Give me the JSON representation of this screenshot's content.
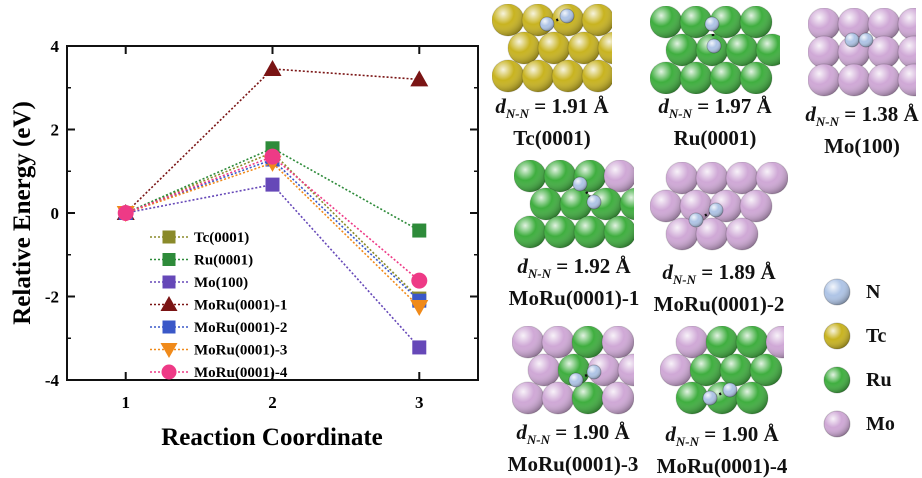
{
  "colors": {
    "N": "#aec4e6",
    "Tc": "#c8b320",
    "Ru": "#3fae3f",
    "Mo": "#cfa8d6"
  },
  "chart_data": {
    "type": "line",
    "xlabel": "Reaction Coordinate",
    "ylabel": "Relative Energy (eV)",
    "x": [
      1,
      2,
      3
    ],
    "xlim": [
      0.6,
      3.4
    ],
    "ylim": [
      -4,
      4
    ],
    "xticks": [
      "1",
      "2",
      "3"
    ],
    "yticks": [
      "-4",
      "-2",
      "0",
      "2",
      "4"
    ],
    "grid": false,
    "legend_position": "bottom-left",
    "series": [
      {
        "name": "Tc(0001)",
        "values": [
          0,
          1.45,
          -2.05
        ],
        "color": "#8a8a2a",
        "marker": "square"
      },
      {
        "name": "Ru(0001)",
        "values": [
          0,
          1.55,
          -0.42
        ],
        "color": "#2e8b3a",
        "marker": "square"
      },
      {
        "name": "Mo(100)",
        "values": [
          0,
          0.68,
          -3.22
        ],
        "color": "#6648b8",
        "marker": "square"
      },
      {
        "name": "MoRu(0001)-1",
        "values": [
          0,
          3.45,
          3.2
        ],
        "color": "#7a1414",
        "marker": "triangle-up"
      },
      {
        "name": "MoRu(0001)-2",
        "values": [
          0,
          1.28,
          -2.1
        ],
        "color": "#3a58c8",
        "marker": "square"
      },
      {
        "name": "MoRu(0001)-3",
        "values": [
          0,
          1.2,
          -2.25
        ],
        "color": "#f08a1a",
        "marker": "triangle-down"
      },
      {
        "name": "MoRu(0001)-4",
        "values": [
          0,
          1.35,
          -1.62
        ],
        "color": "#ee3a86",
        "marker": "circle"
      }
    ]
  },
  "structures": [
    {
      "surface": "Tc(0001)",
      "distance": "1.91 Å"
    },
    {
      "surface": "Ru(0001)",
      "distance": "1.97 Å"
    },
    {
      "surface": "Mo(100)",
      "distance": "1.38 Å"
    },
    {
      "surface": "MoRu(0001)-1",
      "distance": "1.92 Å"
    },
    {
      "surface": "MoRu(0001)-2",
      "distance": "1.89 Å"
    },
    {
      "surface": "MoRu(0001)-3",
      "distance": "1.90 Å"
    },
    {
      "surface": "MoRu(0001)-4",
      "distance": "1.90 Å"
    }
  ],
  "distance_label": {
    "d": "d",
    "sub": "N-N",
    "eq": " = "
  },
  "element_legend": [
    {
      "symbol": "N",
      "color": "#aec4e6"
    },
    {
      "symbol": "Tc",
      "color": "#c8b320"
    },
    {
      "symbol": "Ru",
      "color": "#3fae3f"
    },
    {
      "symbol": "Mo",
      "color": "#cfa8d6"
    }
  ]
}
